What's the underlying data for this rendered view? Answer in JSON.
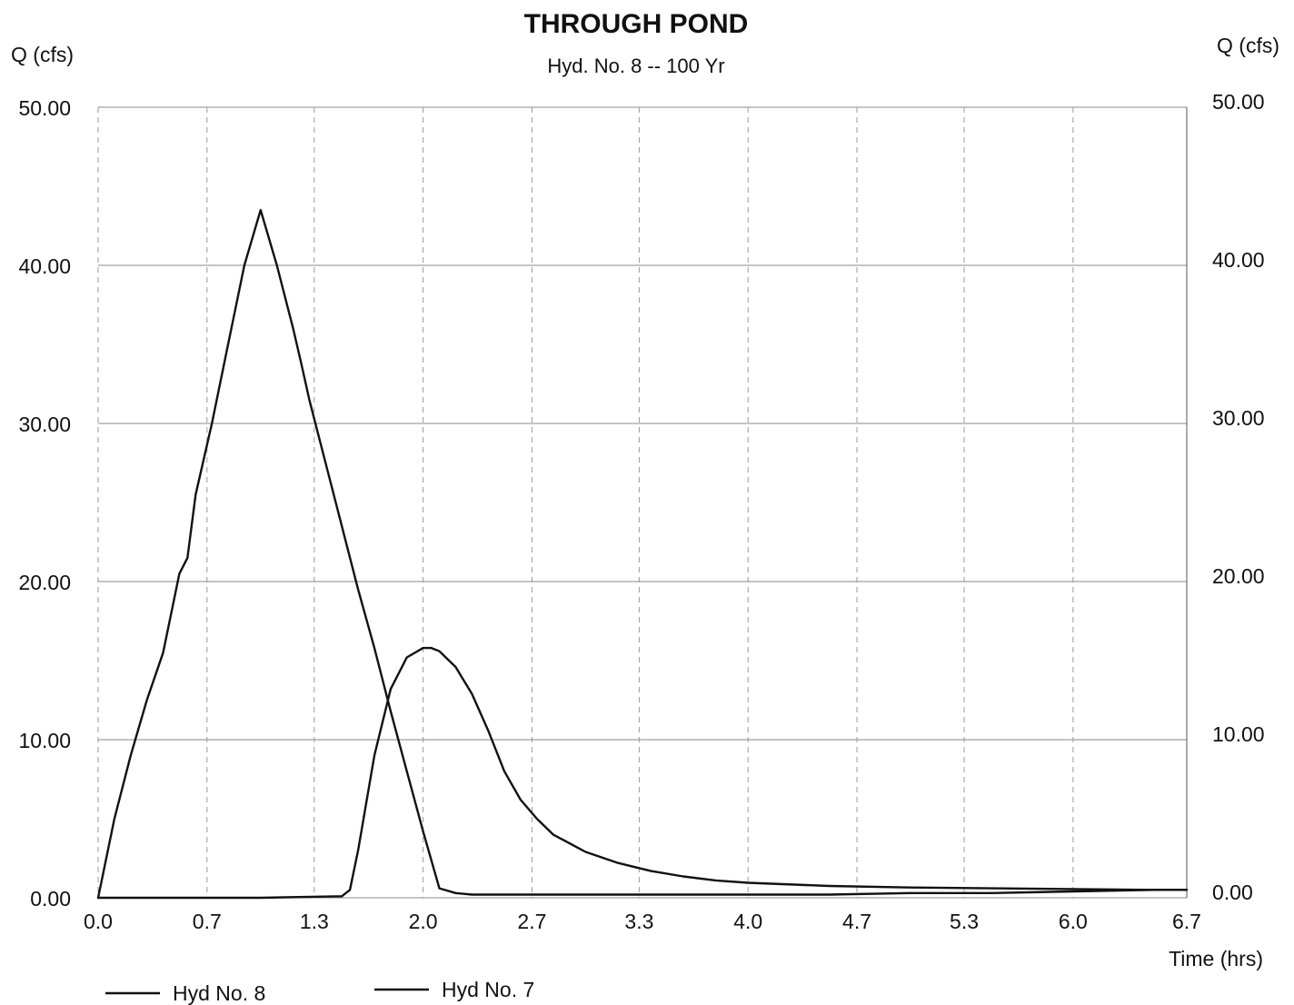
{
  "chart_data": {
    "type": "line",
    "title": "THROUGH POND",
    "subtitle": "Hyd. No. 8 -- 100 Yr",
    "ylabel_left": "Q (cfs)",
    "ylabel_right": "Q (cfs)",
    "xlabel": "Time (hrs)",
    "xlim": [
      0,
      6.7
    ],
    "ylim": [
      0,
      50
    ],
    "x_ticks": [
      "0.0",
      "0.7",
      "1.3",
      "2.0",
      "2.7",
      "3.3",
      "4.0",
      "4.7",
      "5.3",
      "6.0",
      "6.7"
    ],
    "x_tick_values": [
      0,
      0.67,
      1.33,
      2.0,
      2.67,
      3.33,
      4.0,
      4.67,
      5.33,
      6.0,
      6.7
    ],
    "y_ticks": [
      "0.00",
      "10.00",
      "20.00",
      "30.00",
      "40.00",
      "50.00"
    ],
    "y_tick_values": [
      0,
      10,
      20,
      30,
      40,
      50
    ],
    "grid": true,
    "legend_position": "bottom-left",
    "series": [
      {
        "name": "Hyd No. 8",
        "x": [
          0,
          0.1,
          0.2,
          0.3,
          0.4,
          0.5,
          0.55,
          0.6,
          0.7,
          0.8,
          0.9,
          1.0,
          1.1,
          1.2,
          1.25,
          1.3,
          1.4,
          1.5,
          1.6,
          1.7,
          1.8,
          1.9,
          2.0,
          2.1,
          2.2,
          2.3,
          2.4,
          2.5,
          2.55,
          2.6,
          2.7,
          3.0,
          3.5,
          4.0,
          4.5,
          5.0,
          5.5,
          6.0,
          6.5,
          6.7
        ],
        "y": [
          0,
          5.0,
          9.0,
          12.5,
          15.5,
          20.5,
          21.5,
          25.5,
          30,
          35,
          40,
          43.5,
          40.0,
          36.0,
          33.8,
          31.5,
          27.5,
          23.5,
          19.5,
          15.8,
          11.8,
          8.0,
          4.2,
          0.6,
          0.3,
          0.2,
          0.2,
          0.2,
          0.2,
          0.2,
          0.2,
          0.2,
          0.2,
          0.2,
          0.2,
          0.3,
          0.3,
          0.4,
          0.5,
          0.5
        ],
        "color": "#111111"
      },
      {
        "name": "Hyd No. 7",
        "x": [
          0,
          0.5,
          1.0,
          1.5,
          1.55,
          1.6,
          1.7,
          1.8,
          1.9,
          2.0,
          2.05,
          2.1,
          2.2,
          2.3,
          2.4,
          2.5,
          2.6,
          2.7,
          2.8,
          3.0,
          3.2,
          3.4,
          3.6,
          3.8,
          4.0,
          4.5,
          5.0,
          5.5,
          6.0,
          6.5,
          6.7
        ],
        "y": [
          0,
          0,
          0,
          0.1,
          0.5,
          3.0,
          9.0,
          13.2,
          15.2,
          15.8,
          15.8,
          15.6,
          14.6,
          12.9,
          10.6,
          8.0,
          6.2,
          5.0,
          4.0,
          2.9,
          2.2,
          1.7,
          1.35,
          1.1,
          0.95,
          0.75,
          0.65,
          0.6,
          0.55,
          0.5,
          0.5
        ],
        "color": "#111111"
      }
    ]
  }
}
